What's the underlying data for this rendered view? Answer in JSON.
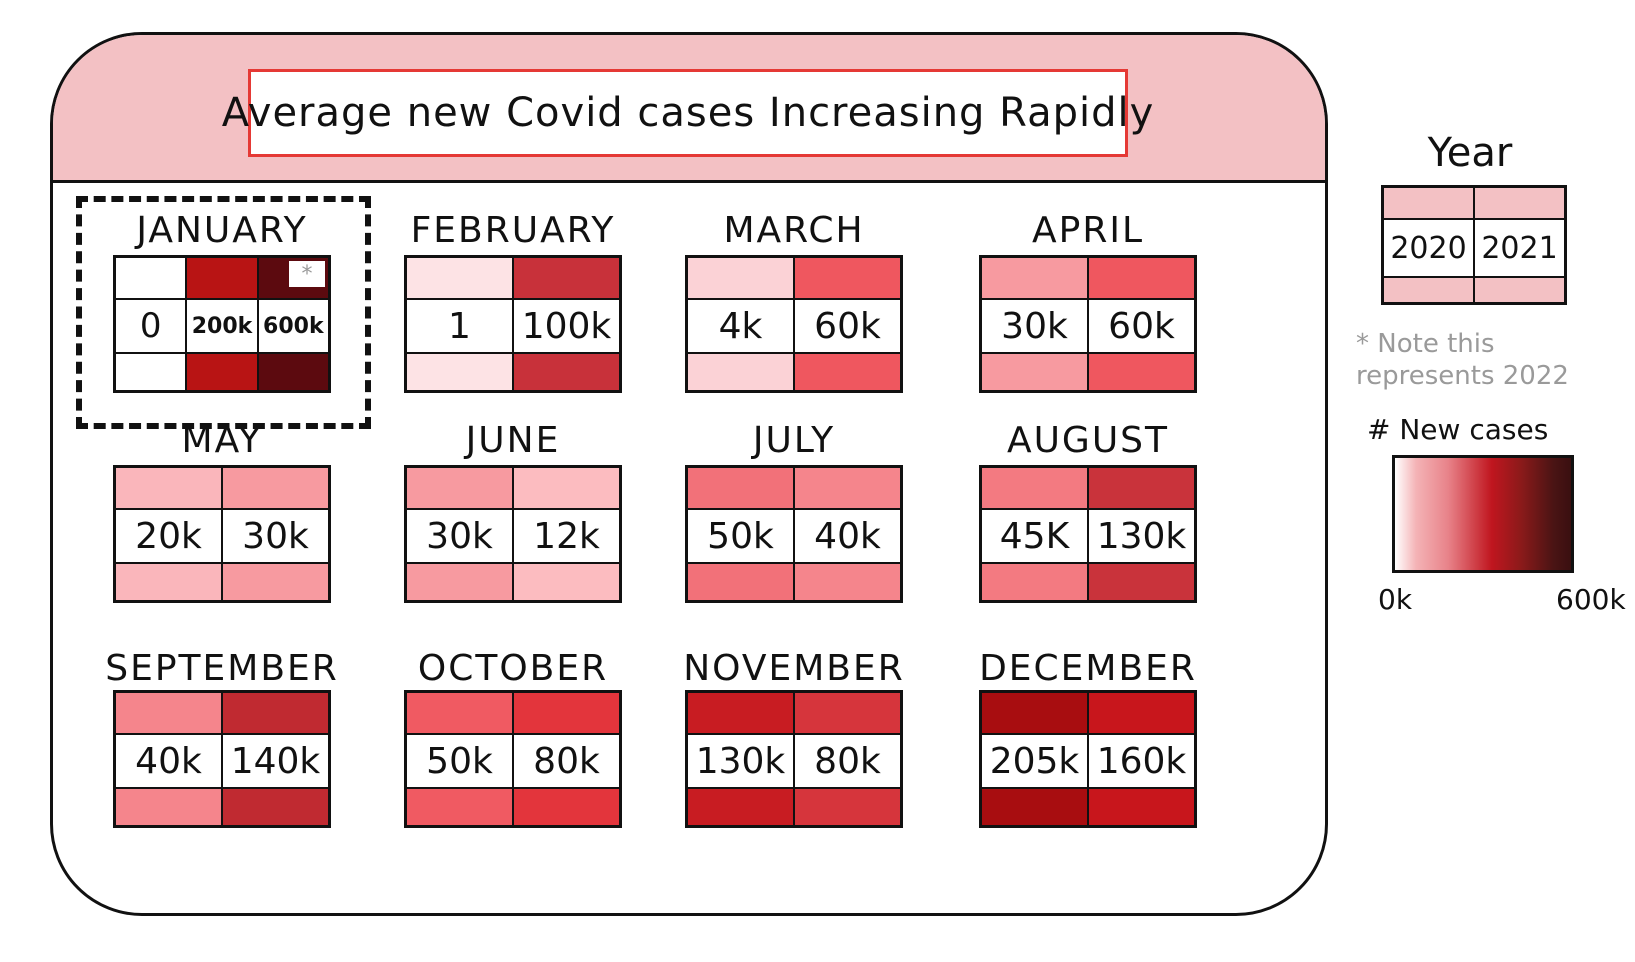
{
  "title": "Average new Covid cases Increasing Rapidly",
  "colors": {
    "header_bg": "#f3c1c4",
    "title_border": "#e53935",
    "year_key": "#f3c1c4",
    "note_text": "#9a9a9a"
  },
  "year_key": {
    "title": "Year",
    "labels": [
      "2020",
      "2021"
    ]
  },
  "note": "* Note this represents 2022",
  "legend": {
    "title": "# New cases",
    "min_label": "0k",
    "max_label": "600k",
    "color_scale": [
      "#ffffff",
      "#f4b3b6",
      "#e8838a",
      "#c0161f",
      "#8a1a1a",
      "#3a0f10"
    ]
  },
  "chart_data": {
    "type": "heatmap",
    "title": "Average new Covid cases Increasing Rapidly",
    "series_names": [
      "2020",
      "2021",
      "2022"
    ],
    "color_range": [
      0,
      600000
    ],
    "months": [
      {
        "name": "JANUARY",
        "labels": [
          "0",
          "200k",
          "600k"
        ],
        "values": [
          0,
          200000,
          600000
        ],
        "colors": [
          "#ffffff",
          "#b81414",
          "#5c0a0f"
        ],
        "highlighted": true,
        "star_label": "*"
      },
      {
        "name": "FEBRUARY",
        "labels": [
          "1",
          "100k"
        ],
        "values": [
          1,
          100000
        ],
        "colors": [
          "#fde3e5",
          "#c8313a"
        ]
      },
      {
        "name": "MARCH",
        "labels": [
          "4k",
          "60k"
        ],
        "values": [
          4000,
          60000
        ],
        "colors": [
          "#fbd2d6",
          "#ef575f"
        ]
      },
      {
        "name": "APRIL",
        "labels": [
          "30k",
          "60k"
        ],
        "values": [
          30000,
          60000
        ],
        "colors": [
          "#f79aa0",
          "#ef575f"
        ]
      },
      {
        "name": "MAY",
        "labels": [
          "20k",
          "30k"
        ],
        "values": [
          20000,
          30000
        ],
        "colors": [
          "#fab6bb",
          "#f79aa0"
        ]
      },
      {
        "name": "JUNE",
        "labels": [
          "30k",
          "12k"
        ],
        "values": [
          30000,
          12000
        ],
        "colors": [
          "#f79aa0",
          "#fcbcc0"
        ]
      },
      {
        "name": "JULY",
        "labels": [
          "50k",
          "40k"
        ],
        "values": [
          50000,
          40000
        ],
        "colors": [
          "#f27179",
          "#f5858c"
        ]
      },
      {
        "name": "AUGUST",
        "labels": [
          "45K",
          "130k"
        ],
        "values": [
          45000,
          130000
        ],
        "colors": [
          "#f37a81",
          "#c9333b"
        ]
      },
      {
        "name": "SEPTEMBER",
        "labels": [
          "40k",
          "140k"
        ],
        "values": [
          40000,
          140000
        ],
        "colors": [
          "#f5858c",
          "#c02a31"
        ]
      },
      {
        "name": "OCTOBER",
        "labels": [
          "50k",
          "80k"
        ],
        "values": [
          50000,
          80000
        ],
        "colors": [
          "#f05a62",
          "#e3353c"
        ]
      },
      {
        "name": "NOVEMBER",
        "labels": [
          "130k",
          "80k"
        ],
        "values": [
          130000,
          80000
        ],
        "colors": [
          "#c81c22",
          "#d6353c"
        ]
      },
      {
        "name": "DECEMBER",
        "labels": [
          "205k",
          "160k"
        ],
        "values": [
          205000,
          160000
        ],
        "colors": [
          "#a80d10",
          "#c8161c"
        ]
      }
    ]
  }
}
